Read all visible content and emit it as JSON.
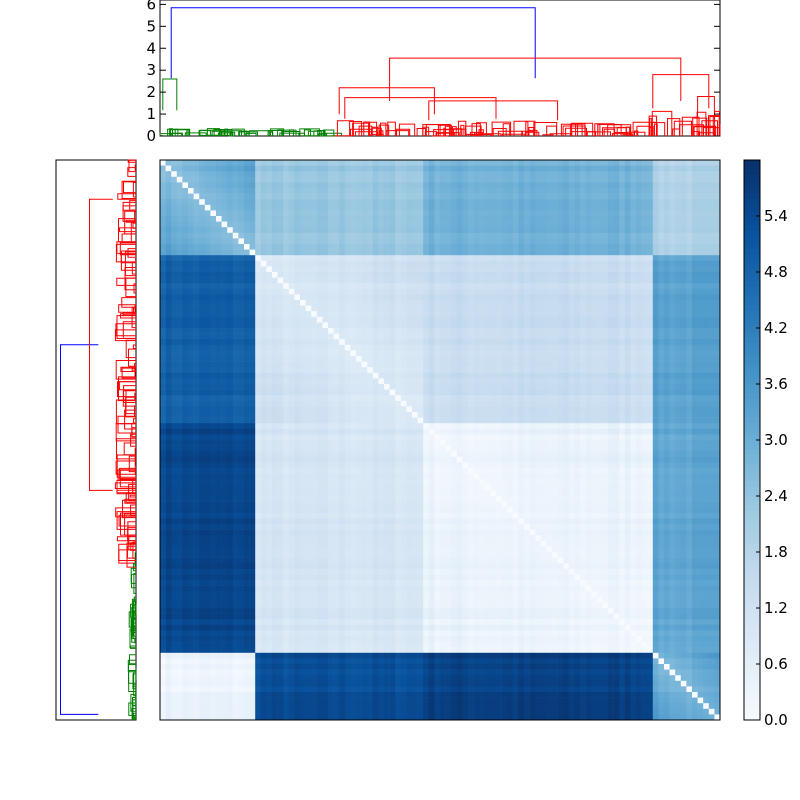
{
  "chart_data": {
    "type": "heatmap",
    "title": "",
    "description_kind": "clustered distance matrix with dendrograms",
    "colormap": {
      "name": "Blues",
      "low": "#f7fbff",
      "high": "#08306b"
    },
    "clim": [
      0.0,
      6.0
    ],
    "colorbar": {
      "ticks": [
        "0.0",
        "0.6",
        "1.2",
        "1.8",
        "2.4",
        "3.0",
        "3.6",
        "4.2",
        "4.8",
        "5.4"
      ],
      "tick_values": [
        0.0,
        0.6,
        1.2,
        1.8,
        2.4,
        3.0,
        3.6,
        4.2,
        4.8,
        5.4
      ]
    },
    "top_dendrogram": {
      "ylim": [
        0,
        6.2
      ],
      "yticks": [
        "0",
        "1",
        "2",
        "3",
        "4",
        "5",
        "6"
      ],
      "ytick_values": [
        0,
        1,
        2,
        3,
        4,
        5,
        6
      ],
      "root_height": 5.85,
      "colors": {
        "root": "#0000ff",
        "cluster_a": "#008000",
        "cluster_b": "#ff0000"
      },
      "main_links": [
        {
          "left": 0.02,
          "right": 0.67,
          "height": 5.85,
          "color": "#0000ff"
        },
        {
          "left": 0.41,
          "right": 0.93,
          "height": 3.55,
          "color": "#ff0000"
        },
        {
          "left": 0.32,
          "right": 0.49,
          "height": 2.2,
          "color": "#ff0000"
        },
        {
          "left": 0.88,
          "right": 0.98,
          "height": 2.8,
          "color": "#ff0000"
        },
        {
          "left": 0.005,
          "right": 0.03,
          "height": 2.6,
          "color": "#008000"
        },
        {
          "left": 0.33,
          "right": 0.6,
          "height": 1.75,
          "color": "#ff0000"
        },
        {
          "left": 0.48,
          "right": 0.71,
          "height": 1.6,
          "color": "#ff0000"
        },
        {
          "left": 0.96,
          "right": 0.99,
          "height": 1.8,
          "color": "#ff0000"
        }
      ]
    },
    "left_dendrogram": {
      "root_height": 5.85,
      "main_links": [
        {
          "top": 0.33,
          "bottom": 0.99,
          "height": 5.85,
          "color": "#0000ff"
        },
        {
          "top": 0.07,
          "bottom": 0.59,
          "height": 3.6,
          "color": "#ff0000"
        }
      ]
    },
    "row_clusters": [
      {
        "label": "",
        "fraction": 0.17
      },
      {
        "label": "",
        "fraction": 0.3
      },
      {
        "label": "",
        "fraction": 0.41
      },
      {
        "label": "",
        "fraction": 0.12
      }
    ],
    "block_matrix": [
      [
        3.6,
        2.3,
        2.9,
        1.9
      ],
      [
        4.9,
        1.2,
        1.4,
        3.3
      ],
      [
        5.5,
        1.0,
        0.4,
        3.2
      ],
      [
        0.3,
        5.3,
        5.6,
        3.9
      ]
    ]
  }
}
